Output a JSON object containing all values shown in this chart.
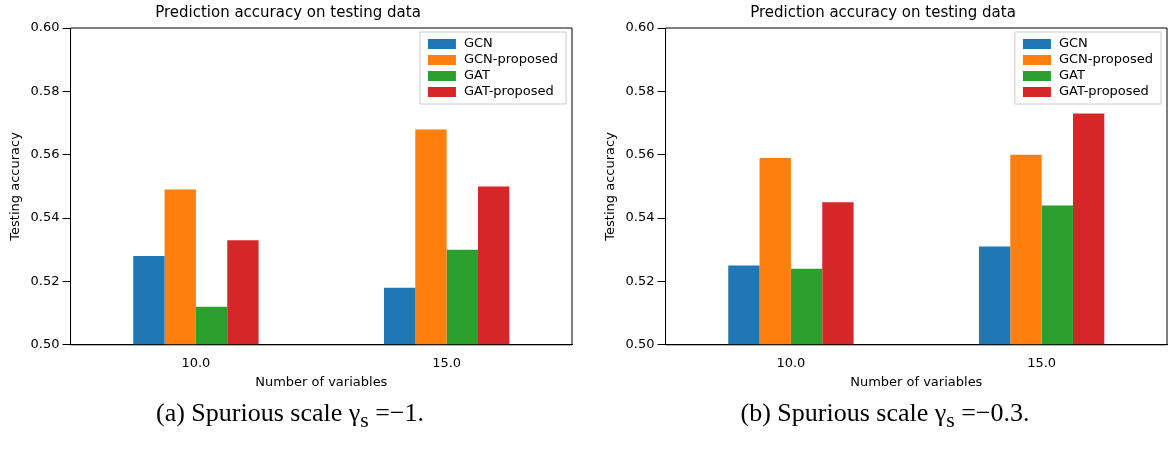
{
  "chart_data": [
    {
      "type": "bar",
      "title": "Prediction accuracy on testing data",
      "xlabel": "Number of variables",
      "ylabel": "Testing accuracy",
      "categories": [
        "10.0",
        "15.0"
      ],
      "series": [
        {
          "name": "GCN",
          "color": "#1f77b4",
          "values": [
            0.528,
            0.518
          ]
        },
        {
          "name": "GCN-proposed",
          "color": "#ff7f0e",
          "values": [
            0.549,
            0.568
          ]
        },
        {
          "name": "GAT",
          "color": "#2ca02c",
          "values": [
            0.512,
            0.53
          ]
        },
        {
          "name": "GAT-proposed",
          "color": "#d62728",
          "values": [
            0.533,
            0.55
          ]
        }
      ],
      "ylim": [
        0.5,
        0.6
      ],
      "yticks": [
        {
          "value": 0.5,
          "label": "0.50"
        },
        {
          "value": 0.52,
          "label": "0.52"
        },
        {
          "value": 0.54,
          "label": "0.54"
        },
        {
          "value": 0.56,
          "label": "0.56"
        },
        {
          "value": 0.58,
          "label": "0.58"
        },
        {
          "value": 0.6,
          "label": "0.60"
        }
      ],
      "legend": "top right",
      "annotations": [
        "(a) Spurious scale γ$_{s}$ =−1."
      ]
    },
    {
      "type": "bar",
      "title": "Prediction accuracy on testing data",
      "xlabel": "Number of variables",
      "ylabel": "Testing accuracy",
      "categories": [
        "10.0",
        "15.0"
      ],
      "series": [
        {
          "name": "GCN",
          "color": "#1f77b4",
          "values": [
            0.525,
            0.531
          ]
        },
        {
          "name": "GCN-proposed",
          "color": "#ff7f0e",
          "values": [
            0.559,
            0.56
          ]
        },
        {
          "name": "GAT",
          "color": "#2ca02c",
          "values": [
            0.524,
            0.544
          ]
        },
        {
          "name": "GAT-proposed",
          "color": "#d62728",
          "values": [
            0.545,
            0.573
          ]
        }
      ],
      "ylim": [
        0.5,
        0.6
      ],
      "yticks": [
        {
          "value": 0.5,
          "label": "0.50"
        },
        {
          "value": 0.52,
          "label": "0.52"
        },
        {
          "value": 0.54,
          "label": "0.54"
        },
        {
          "value": 0.56,
          "label": "0.56"
        },
        {
          "value": 0.58,
          "label": "0.58"
        },
        {
          "value": 0.6,
          "label": "0.60"
        }
      ],
      "legend": "top right",
      "annotations": [
        "(b) Spurious scale γ$_{s}$ =−0.3."
      ]
    }
  ]
}
